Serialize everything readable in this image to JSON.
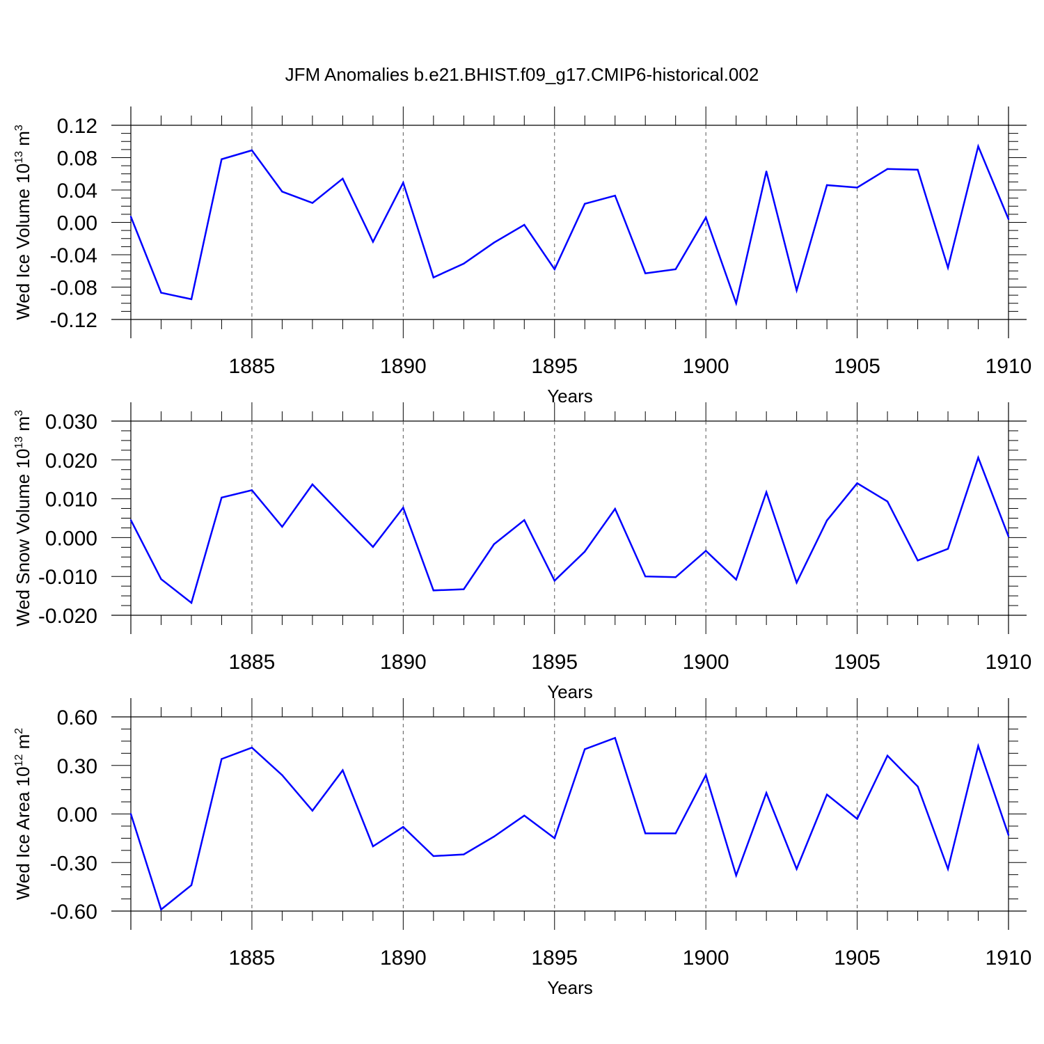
{
  "title": "JFM Anomalies b.e21.BHIST.f09_g17.CMIP6-historical.002",
  "series_color": "#0000ff",
  "chart_data": [
    {
      "type": "line",
      "ylabel": "Wed Ice Volume 10",
      "ylabel_exp": "13",
      "ylabel_unit": "m",
      "ylabel_unit_exp": "3",
      "xlabel": "Years",
      "xlim": [
        1881,
        1910
      ],
      "ylim": [
        -0.12,
        0.12
      ],
      "xticks": [
        "1885",
        "1890",
        "1895",
        "1900",
        "1905",
        "1910"
      ],
      "yticks": [
        "0.12",
        "0.08",
        "0.04",
        "0.00",
        "-0.04",
        "-0.08",
        "-0.12"
      ],
      "x": [
        1881,
        1882,
        1883,
        1884,
        1885,
        1886,
        1887,
        1888,
        1889,
        1890,
        1891,
        1892,
        1893,
        1894,
        1895,
        1896,
        1897,
        1898,
        1899,
        1900,
        1901,
        1902,
        1903,
        1904,
        1905,
        1906,
        1907,
        1908,
        1909,
        1910
      ],
      "values": [
        0.007,
        -0.087,
        -0.095,
        0.078,
        0.089,
        0.038,
        0.024,
        0.054,
        -0.024,
        0.049,
        -0.068,
        -0.051,
        -0.025,
        -0.003,
        -0.058,
        0.023,
        0.033,
        -0.063,
        -0.058,
        0.006,
        -0.1,
        0.063,
        -0.084,
        0.046,
        0.043,
        0.066,
        0.065,
        -0.056,
        0.094,
        0.004
      ]
    },
    {
      "type": "line",
      "ylabel": "Wed Snow Volume 10",
      "ylabel_exp": "13",
      "ylabel_unit": "m",
      "ylabel_unit_exp": "3",
      "xlabel": "Years",
      "xlim": [
        1881,
        1910
      ],
      "ylim": [
        -0.02,
        0.03
      ],
      "xticks": [
        "1885",
        "1890",
        "1895",
        "1900",
        "1905",
        "1910"
      ],
      "yticks": [
        "0.030",
        "0.020",
        "0.010",
        "0.000",
        "-0.010",
        "-0.020"
      ],
      "x": [
        1881,
        1882,
        1883,
        1884,
        1885,
        1886,
        1887,
        1888,
        1889,
        1890,
        1891,
        1892,
        1893,
        1894,
        1895,
        1896,
        1897,
        1898,
        1899,
        1900,
        1901,
        1902,
        1903,
        1904,
        1905,
        1906,
        1907,
        1908,
        1909,
        1910
      ],
      "values": [
        0.0045,
        -0.0107,
        -0.0168,
        0.0103,
        0.0122,
        0.0028,
        0.0137,
        0.0056,
        -0.0024,
        0.0077,
        -0.0136,
        -0.0133,
        -0.0017,
        0.0045,
        -0.0111,
        -0.0036,
        0.0074,
        -0.01,
        -0.0102,
        -0.0034,
        -0.0108,
        0.0117,
        -0.0116,
        0.0044,
        0.014,
        0.0093,
        -0.0059,
        -0.0029,
        0.0206,
        0.0003
      ]
    },
    {
      "type": "line",
      "ylabel": "Wed Ice Area 10",
      "ylabel_exp": "12",
      "ylabel_unit": "m",
      "ylabel_unit_exp": "2",
      "xlabel": "Years",
      "xlim": [
        1881,
        1910
      ],
      "ylim": [
        -0.6,
        0.6
      ],
      "xticks": [
        "1885",
        "1890",
        "1895",
        "1900",
        "1905",
        "1910"
      ],
      "yticks": [
        "0.60",
        "0.30",
        "0.00",
        "-0.30",
        "-0.60"
      ],
      "x": [
        1881,
        1882,
        1883,
        1884,
        1885,
        1886,
        1887,
        1888,
        1889,
        1890,
        1891,
        1892,
        1893,
        1894,
        1895,
        1896,
        1897,
        1898,
        1899,
        1900,
        1901,
        1902,
        1903,
        1904,
        1905,
        1906,
        1907,
        1908,
        1909,
        1910
      ],
      "values": [
        0.0,
        -0.59,
        -0.44,
        0.34,
        0.41,
        0.24,
        0.02,
        0.27,
        -0.2,
        -0.08,
        -0.26,
        -0.25,
        -0.14,
        -0.01,
        -0.15,
        0.4,
        0.47,
        -0.12,
        -0.12,
        0.24,
        -0.38,
        0.13,
        -0.34,
        0.12,
        -0.03,
        0.36,
        0.17,
        -0.34,
        0.42,
        -0.13
      ]
    }
  ]
}
